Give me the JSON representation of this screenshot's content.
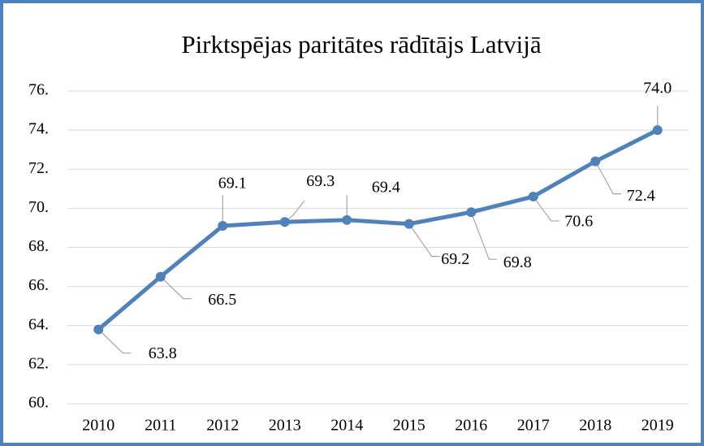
{
  "chart_data": {
    "type": "line",
    "title": "Pirktspējas paritātes rādītājs Latvijā",
    "categories": [
      "2010",
      "2011",
      "2012",
      "2013",
      "2014",
      "2015",
      "2016",
      "2017",
      "2018",
      "2019"
    ],
    "series": [
      {
        "name": "Pirktspējas paritātes rādītājs",
        "color": "#4f81bd",
        "values": [
          63.8,
          66.5,
          69.1,
          69.3,
          69.4,
          69.2,
          69.8,
          70.6,
          72.4,
          74.0
        ],
        "value_labels": [
          "63.8",
          "66.5",
          "69.1",
          "69.3",
          "69.4",
          "69.2",
          "69.8",
          "70.6",
          "72.4",
          "74.0"
        ]
      }
    ],
    "ylim": [
      60,
      76
    ],
    "yticks": [
      {
        "value": 60,
        "label": "60."
      },
      {
        "value": 62,
        "label": "62."
      },
      {
        "value": 64,
        "label": "64."
      },
      {
        "value": 66,
        "label": "66."
      },
      {
        "value": 68,
        "label": "68."
      },
      {
        "value": 70,
        "label": "70."
      },
      {
        "value": 72,
        "label": "72."
      },
      {
        "value": 74,
        "label": "74."
      },
      {
        "value": 76,
        "label": "76."
      }
    ],
    "grid": true
  }
}
